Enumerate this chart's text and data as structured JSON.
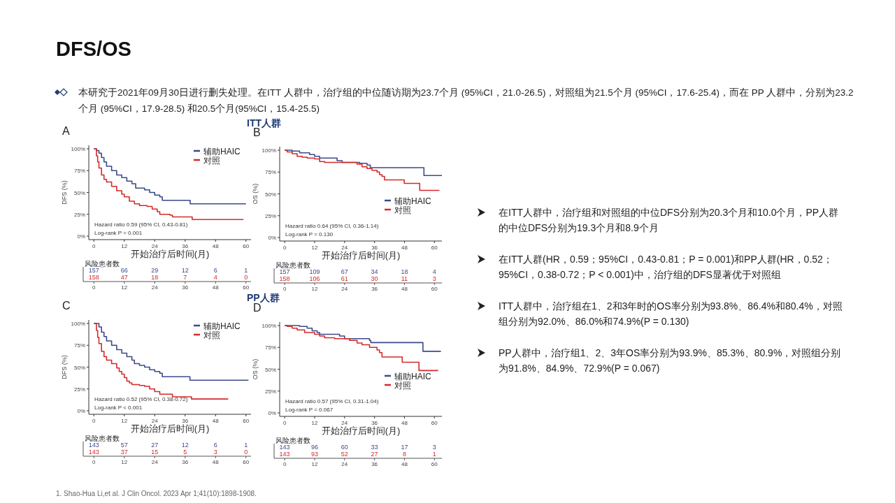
{
  "chart_data": [
    {
      "type": "other",
      "title": "DFS/OS",
      "annotations": [
        "本研究于2021年09月30日进行删失处理。在ITT  人群中，治疗组的中位随访期为23.7个月 (95%CI，21.0-26.5)，对照组为21.5个月 (95%CI，17.6-25.4)，而在 PP 人群中，分别为23.2个月 (95%CI，17.9-28.5) 和20.5个月(95%CI，15.4-25.5)",
        "在ITT人群中，治疗组和对照组的中位DFS分别为20.3个月和10.0个月，PP人群的中位DFS分别为19.3个月和8.9个月",
        "在ITT人群(HR，0.59；95%CI，0.43-0.81；P = 0.001)和PP人群(HR，0.52；95%CI，0.38-0.72；P < 0.001)中，治疗组的DFS显著优于对照组",
        "ITT人群中，治疗组在1、2和3年时的OS率分别为93.8%、86.4%和80.4%，对照组分别为92.0%、86.0%和74.9%(P = 0.130)",
        "PP人群中，治疗组1、2、3年OS率分别为93.9%、85.3%、80.9%，对照组分别为91.8%、84.9%、72.9%(P = 0.067)",
        "1.   Shao-Hua Li,et al. J Clin  Oncol. 2023 Apr 1;41(10):1898-1908."
      ]
    },
    {
      "type": "step",
      "title": "A",
      "subtitle": "ITT人群",
      "xlabel": "开始治疗后时间(月)",
      "ylabel": "DFS (%)",
      "xlim": [
        -2,
        62
      ],
      "x2lim": [
        -2,
        62
      ],
      "x2ticks": [
        0,
        12,
        24,
        36,
        48,
        60
      ],
      "ylim": [
        -4,
        104
      ],
      "xticks": [
        0,
        12,
        24,
        36,
        48,
        60
      ],
      "yticks": [
        {
          "value": 0,
          "label": "0%"
        },
        {
          "value": 25,
          "label": "25%"
        },
        {
          "value": 50,
          "label": "50%"
        },
        {
          "value": 75,
          "label": "75%"
        },
        {
          "value": 100,
          "label": "100%"
        }
      ],
      "legend": "top right",
      "series": [
        {
          "name": "辅助HAIC",
          "color": "#3b4a8a",
          "x": [
            0,
            1,
            2,
            3,
            4,
            5,
            7,
            9,
            11,
            13,
            15,
            16.5,
            20,
            22,
            24,
            26,
            27,
            38,
            60
          ],
          "values": [
            100,
            98,
            95,
            90,
            85,
            80,
            75,
            70,
            67,
            63,
            60,
            55,
            53,
            50,
            47,
            45,
            41,
            37,
            37
          ]
        },
        {
          "name": "对照",
          "color": "#d42a2a",
          "x": [
            0,
            1,
            1.5,
            2,
            3,
            4,
            5,
            7,
            9,
            11,
            12,
            14,
            16,
            18,
            21,
            23,
            25,
            26,
            30,
            31,
            38.8,
            59
          ],
          "values": [
            100,
            92,
            85,
            78,
            70,
            65,
            62,
            57,
            52,
            48,
            45,
            40,
            37,
            35,
            34,
            31,
            28,
            25,
            24,
            22,
            19,
            19
          ]
        }
      ],
      "annotations": [
        "Hazard ratio 0.59 (95% CI, 0.43-0.81)",
        "Log-rank P = 0.001",
        "风险患者数",
        "157",
        "66",
        "29",
        "12",
        "6",
        "1",
        "158",
        "47",
        "18",
        "7",
        "4",
        "0"
      ]
    },
    {
      "type": "step",
      "title": "B",
      "ylabel": "OS (%)",
      "xlabel": "开始治疗后时间(月)",
      "xlim": [
        -2,
        63
      ],
      "x2lim": [
        -2,
        63
      ],
      "x2ticks": [
        0,
        12,
        24,
        36,
        48,
        60
      ],
      "ylim": [
        -4,
        104
      ],
      "xticks": [
        0,
        12,
        24,
        36,
        48,
        60
      ],
      "yticks": [
        {
          "value": 0,
          "label": "0%"
        },
        {
          "value": 25,
          "label": "25%"
        },
        {
          "value": 50,
          "label": "50%"
        },
        {
          "value": 75,
          "label": "75%"
        },
        {
          "value": 100,
          "label": "100%"
        }
      ],
      "legend": "bottom right",
      "series": [
        {
          "name": "辅助HAIC",
          "color": "#3b4a8a",
          "x": [
            0,
            3,
            6,
            10,
            12,
            14,
            21,
            23,
            30,
            33,
            34.3,
            55.8,
            63
          ],
          "values": [
            100,
            99,
            97,
            95,
            93,
            91,
            88,
            86,
            85,
            83,
            80,
            71,
            71
          ]
        },
        {
          "name": "对照",
          "color": "#d42a2a",
          "x": [
            0,
            1,
            3,
            5,
            7,
            9,
            12,
            14,
            16,
            24,
            29,
            31,
            33,
            35,
            37,
            38,
            39,
            40,
            47.9,
            54.1,
            62
          ],
          "values": [
            100,
            98,
            96,
            93,
            92,
            91,
            90,
            87,
            86,
            86,
            84,
            81,
            79,
            77,
            75,
            72,
            70,
            66,
            62,
            54,
            54
          ]
        }
      ],
      "annotations": [
        "Hazard ratio 0.64 (95% CI, 0.36-1.14)",
        "Log-rank P = 0.130",
        "风险患者数",
        "157",
        "109",
        "67",
        "34",
        "18",
        "4",
        "158",
        "106",
        "61",
        "30",
        "11",
        "3"
      ]
    },
    {
      "type": "step",
      "title": "C",
      "subtitle": "PP人群",
      "xlabel": "开始治疗后时间(月)",
      "ylabel": "DFS (%)",
      "xlim": [
        -2,
        62
      ],
      "x2lim": [
        -2,
        62
      ],
      "x2ticks": [
        0,
        12,
        24,
        36,
        48,
        60
      ],
      "ylim": [
        -4,
        104
      ],
      "xticks": [
        0,
        12,
        24,
        36,
        48,
        60
      ],
      "yticks": [
        {
          "value": 0,
          "label": "0%"
        },
        {
          "value": 25,
          "label": "25%"
        },
        {
          "value": 50,
          "label": "50%"
        },
        {
          "value": 75,
          "label": "75%"
        },
        {
          "value": 100,
          "label": "100%"
        }
      ],
      "legend": "top right",
      "series": [
        {
          "name": "辅助HAIC",
          "color": "#3b4a8a",
          "x": [
            0,
            2,
            3,
            4,
            5,
            7,
            9,
            11,
            13,
            15,
            16,
            18,
            20,
            22,
            24,
            26,
            27,
            37.9,
            61
          ],
          "values": [
            100,
            96,
            90,
            85,
            80,
            75,
            70,
            66,
            62,
            58,
            54,
            52,
            50,
            47,
            45,
            43,
            39,
            35,
            35
          ]
        },
        {
          "name": "对照",
          "color": "#d42a2a",
          "x": [
            0,
            1,
            1.5,
            2,
            3,
            4,
            5,
            7,
            9,
            10,
            11,
            12,
            13,
            14,
            15,
            18,
            20,
            22,
            24,
            26,
            31,
            38.5,
            53
          ],
          "values": [
            100,
            92,
            84,
            77,
            68,
            62,
            58,
            54,
            49,
            45,
            42,
            38,
            34,
            32,
            30,
            29,
            28,
            25,
            22,
            19,
            16,
            13.5,
            13.5
          ]
        }
      ],
      "annotations": [
        "Hazard ratio 0.52 (95% CI, 0.38-0.72)",
        "Log-rank P < 0.001",
        "风险患者数",
        "143",
        "57",
        "27",
        "12",
        "6",
        "1",
        "143",
        "37",
        "15",
        "5",
        "3",
        "0"
      ]
    },
    {
      "type": "step",
      "title": "D",
      "ylabel": "OS (%)",
      "xlabel": "开始治疗后时间(月)",
      "xlim": [
        -2,
        63
      ],
      "x2lim": [
        -2,
        63
      ],
      "x2ticks": [
        0,
        12,
        24,
        36,
        48,
        60
      ],
      "ylim": [
        -4,
        104
      ],
      "xticks": [
        0,
        12,
        24,
        36,
        48,
        60
      ],
      "yticks": [
        {
          "value": 0,
          "label": "0%"
        },
        {
          "value": 25,
          "label": "25%"
        },
        {
          "value": 50,
          "label": "50%"
        },
        {
          "value": 75,
          "label": "75%"
        },
        {
          "value": 100,
          "label": "100%"
        }
      ],
      "legend": "bottom right",
      "series": [
        {
          "name": "辅助HAIC",
          "color": "#3b4a8a",
          "x": [
            0,
            6,
            9,
            11,
            13,
            14,
            22,
            24,
            34,
            34.5,
            55.4,
            62.6
          ],
          "values": [
            100,
            99,
            97,
            94,
            92,
            90,
            88,
            85,
            83,
            80.5,
            70.5,
            70.5
          ]
        },
        {
          "name": "对照",
          "color": "#d42a2a",
          "x": [
            0,
            1,
            3,
            5,
            8,
            12,
            14,
            16,
            20,
            26,
            29,
            31,
            34,
            37,
            38,
            39,
            47.1,
            53.8,
            61.5
          ],
          "values": [
            100,
            99,
            97,
            95,
            92,
            90,
            88,
            86,
            85,
            83,
            80,
            78,
            75,
            72,
            69,
            64,
            58,
            48.5,
            48.5
          ]
        }
      ],
      "annotations": [
        "Hazard ratio 0.57 (95% CI, 0.31-1.04)",
        "Log-rank P = 0.067",
        "风险患者数",
        "143",
        "96",
        "60",
        "33",
        "17",
        "3",
        "143",
        "93",
        "52",
        "27",
        "8",
        "1"
      ]
    }
  ]
}
